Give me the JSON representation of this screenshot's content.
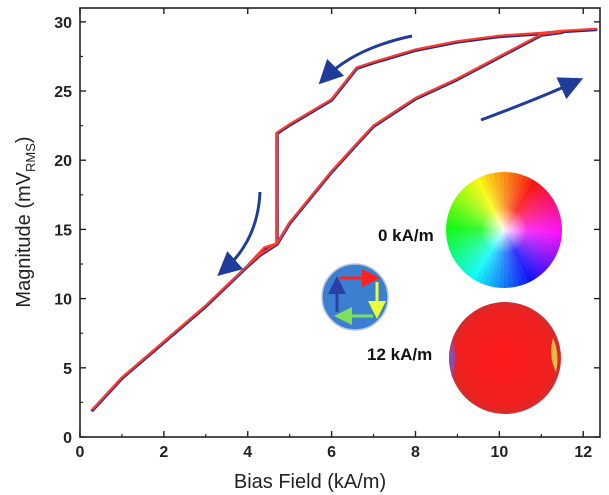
{
  "chart_data": {
    "type": "line",
    "xlabel": "Bias Field (kA/m)",
    "ylabel": {
      "base": "Magnitude (mV",
      "sub": "RMS",
      "end": ")"
    },
    "xlim": [
      0,
      12.4
    ],
    "ylim": [
      0,
      31
    ],
    "x_ticks": [
      0,
      2,
      4,
      6,
      8,
      10,
      12
    ],
    "y_ticks": [
      0,
      5,
      10,
      15,
      20,
      25,
      30
    ],
    "grid": false,
    "series": [
      {
        "color": "#1f2d8a",
        "x": [
          0.3,
          1,
          2,
          3,
          4,
          4.3,
          4.7,
          5,
          6,
          6.6,
          7,
          8,
          9,
          10,
          11,
          11.5,
          11.5,
          12.3,
          12.3,
          11.5,
          11,
          10,
          9,
          8,
          7,
          6.6,
          6,
          5,
          4.7,
          4.7,
          4.4,
          4,
          3,
          2,
          1,
          0.3
        ],
        "y": [
          2,
          4.3,
          6.9,
          9.5,
          12.4,
          13.2,
          14,
          15.5,
          19.2,
          21.2,
          22.5,
          24.5,
          25.9,
          27.5,
          29.1,
          29.3,
          29.35,
          29.5,
          29.5,
          29.35,
          29.2,
          29,
          28.6,
          28,
          27.1,
          26.7,
          24.4,
          22.6,
          22,
          14,
          13.7,
          12.4,
          9.5,
          6.9,
          4.3,
          2
        ]
      },
      {
        "color": "#ff3a2a",
        "x": [
          0.3,
          1,
          2,
          3,
          4,
          4.3,
          4.7,
          5,
          6,
          6.6,
          7,
          8,
          9,
          10,
          11,
          11.5,
          11.5,
          12.3,
          12.3,
          11.5,
          11,
          10,
          9,
          8,
          7,
          6.6,
          6,
          5,
          4.7,
          4.7,
          4.4,
          4,
          3,
          2,
          1,
          0.3
        ],
        "y": [
          2,
          4.3,
          6.9,
          9.5,
          12.4,
          13.2,
          14,
          15.5,
          19.2,
          21.2,
          22.5,
          24.5,
          25.9,
          27.5,
          29.1,
          29.3,
          29.35,
          29.5,
          29.5,
          29.35,
          29.2,
          29,
          28.6,
          28,
          27.1,
          26.7,
          24.4,
          22.6,
          22,
          14,
          13.7,
          12.4,
          9.5,
          6.9,
          4.3,
          2
        ]
      }
    ],
    "arrows_color": "#1f3c9a",
    "insets": [
      {
        "label": "0 kA/m"
      },
      {
        "label": "12 kA/m"
      }
    ]
  }
}
